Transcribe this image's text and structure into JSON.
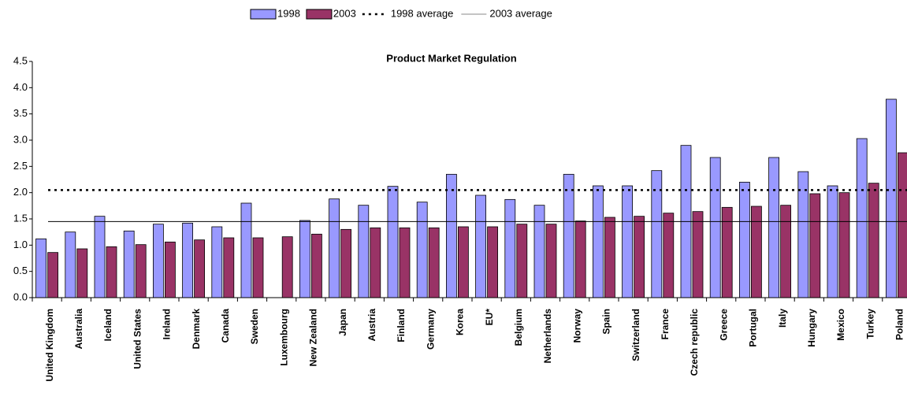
{
  "chart_data": {
    "type": "bar",
    "title": "Product Market Regulation",
    "categories": [
      "United Kingdom",
      "Australia",
      "Iceland",
      "United States",
      "Ireland",
      "Denmark",
      "Canada",
      "Sweden",
      "Luxembourg",
      "New Zealand",
      "Japan",
      "Austria",
      "Finland",
      "Germany",
      "Korea",
      "EU*",
      "Belgium",
      "Netherlands",
      "Norway",
      "Spain",
      "Switzerland",
      "France",
      "Czech republic",
      "Greece",
      "Portugal",
      "Italy",
      "Hungary",
      "Mexico",
      "Turkey",
      "Poland"
    ],
    "series": [
      {
        "name": "1998",
        "color": "#9999ff",
        "values": [
          1.12,
          1.25,
          1.55,
          1.27,
          1.4,
          1.42,
          1.35,
          1.8,
          null,
          1.47,
          1.88,
          1.76,
          2.12,
          1.82,
          2.35,
          1.95,
          1.87,
          1.76,
          2.35,
          2.13,
          2.13,
          2.42,
          2.9,
          2.67,
          2.2,
          2.67,
          2.4,
          2.13,
          3.03,
          3.78
        ]
      },
      {
        "name": "2003",
        "color": "#993366",
        "values": [
          0.86,
          0.93,
          0.97,
          1.01,
          1.06,
          1.1,
          1.14,
          1.14,
          1.16,
          1.21,
          1.3,
          1.33,
          1.33,
          1.33,
          1.35,
          1.35,
          1.4,
          1.4,
          1.46,
          1.53,
          1.55,
          1.61,
          1.64,
          1.72,
          1.74,
          1.76,
          1.98,
          2.0,
          2.18,
          2.76
        ]
      }
    ],
    "reference_lines": [
      {
        "name": "1998 average",
        "value": 2.05,
        "style": "dotted",
        "color": "#000000"
      },
      {
        "name": "2003 average",
        "value": 1.45,
        "style": "solid",
        "color": "#000000"
      }
    ],
    "ylim": [
      0,
      4.5
    ],
    "yticks": [
      {
        "value": 0,
        "label": "0.0"
      },
      0.5,
      {
        "value": 1,
        "label": "1.0"
      },
      1.5,
      {
        "value": 2,
        "label": "2.0"
      },
      2.5,
      {
        "value": 3,
        "label": "3.0"
      },
      3.5,
      {
        "value": 4,
        "label": "4.0"
      },
      4.5
    ],
    "legend": "top"
  }
}
